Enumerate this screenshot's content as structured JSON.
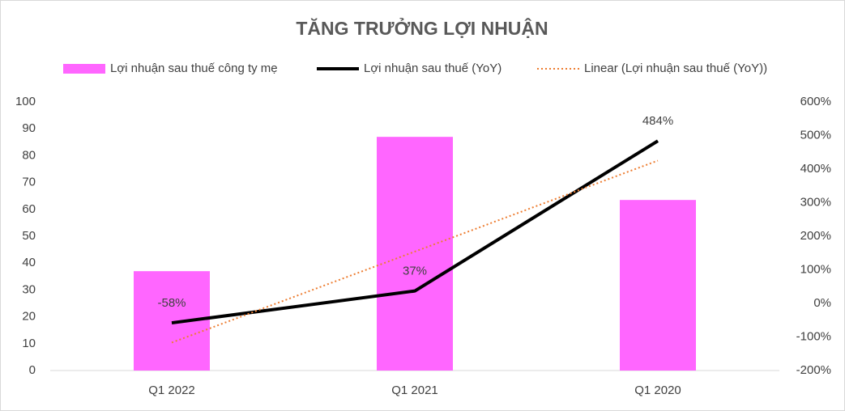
{
  "chart_data": {
    "type": "combo",
    "title": "TĂNG TRƯỞNG LỢI NHUẬN",
    "categories": [
      "Q1 2022",
      "Q1 2021",
      "Q1 2020"
    ],
    "series": [
      {
        "name": "Lợi nhuận sau thuế công ty mẹ",
        "type": "bar",
        "color": "#ff66ff",
        "values": [
          37,
          87,
          63.5
        ]
      },
      {
        "name": "Lợi nhuận sau thuế (YoY)",
        "type": "line",
        "axis": "y2",
        "color": "#000000",
        "values": [
          -58,
          37,
          484
        ],
        "value_labels": [
          "-58%",
          "37%",
          "484%"
        ]
      },
      {
        "name": "Linear (Lợi nhuận sau thuế (YoY))",
        "type": "line",
        "axis": "y2",
        "color": "#ed7d31",
        "dash": "dotted",
        "values": [
          -116.7,
          154.3,
          425.3
        ]
      }
    ],
    "ylim": [
      0,
      100
    ],
    "yticks": [
      0,
      10,
      20,
      30,
      40,
      50,
      60,
      70,
      80,
      90,
      100
    ],
    "y2lim": [
      -200,
      600
    ],
    "y2ticks": [
      {
        "value": -200,
        "label": "-200%"
      },
      {
        "value": -100,
        "label": "-100%"
      },
      {
        "value": 0,
        "label": "0%"
      },
      {
        "value": 100,
        "label": "100%"
      },
      {
        "value": 200,
        "label": "200%"
      },
      {
        "value": 300,
        "label": "300%"
      },
      {
        "value": 400,
        "label": "400%"
      },
      {
        "value": 500,
        "label": "500%"
      },
      {
        "value": 600,
        "label": "600%"
      }
    ],
    "legend": "top"
  }
}
